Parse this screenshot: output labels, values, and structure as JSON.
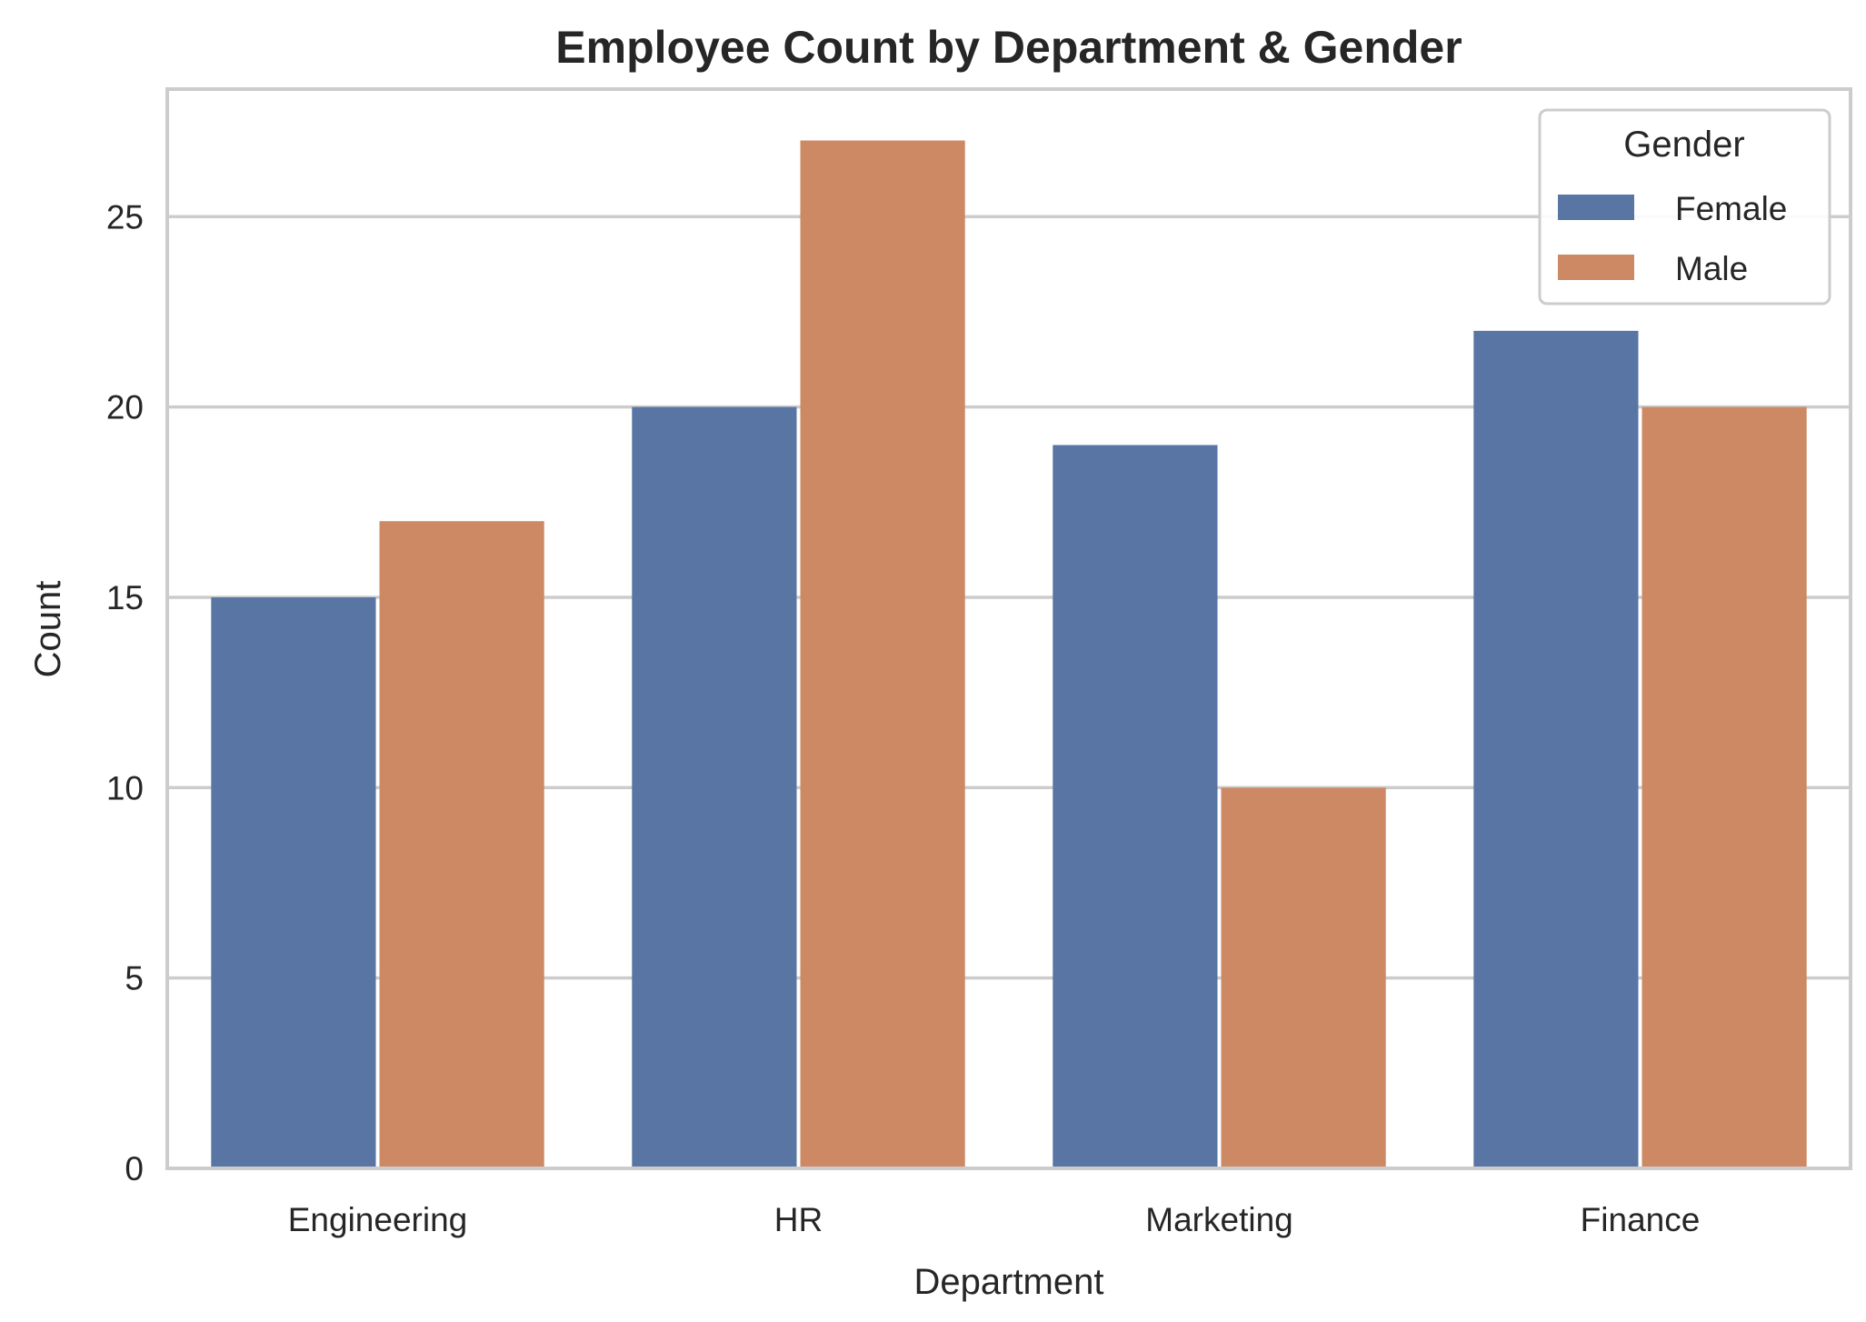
{
  "chart_data": {
    "type": "bar",
    "title": "Employee Count by Department & Gender",
    "xlabel": "Department",
    "ylabel": "Count",
    "categories": [
      "Engineering",
      "HR",
      "Marketing",
      "Finance"
    ],
    "series": [
      {
        "name": "Female",
        "values": [
          15,
          20,
          19,
          22
        ],
        "color": "#5975a4"
      },
      {
        "name": "Male",
        "values": [
          17,
          27,
          10,
          20
        ],
        "color": "#cc8963"
      }
    ],
    "ylim": [
      0,
      28.35
    ],
    "yticks": [
      "0",
      "5",
      "10",
      "15",
      "20",
      "25"
    ],
    "grid": true,
    "legend": {
      "title": "Gender",
      "placement": "top-right"
    },
    "colors": {
      "grid": "#cccccc",
      "frame": "#cccccc",
      "text": "#262626"
    }
  }
}
